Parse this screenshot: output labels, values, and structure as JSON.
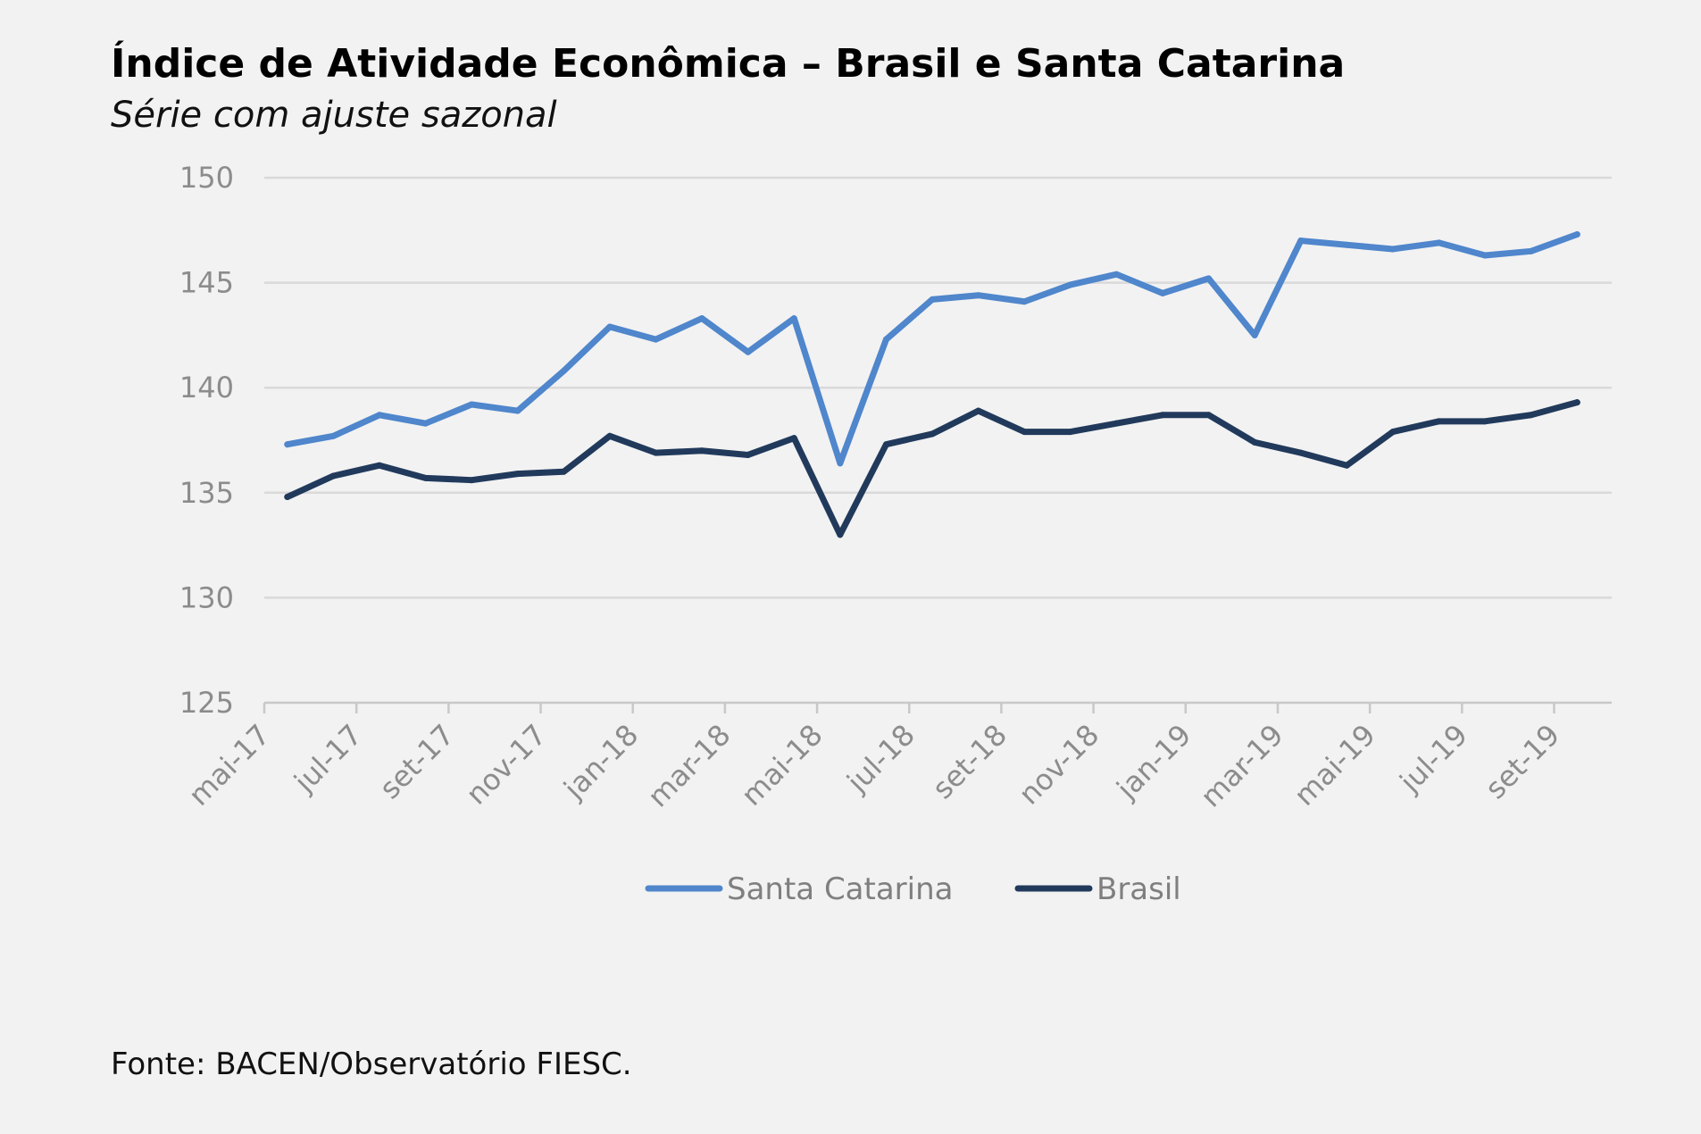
{
  "chart_data": {
    "type": "line",
    "title": "Índice de Atividade Econômica – Brasil e Santa Catarina",
    "subtitle": "Série com ajuste sazonal",
    "source": "Fonte: BACEN/Observatório FIESC.",
    "xlabel": "",
    "ylabel": "",
    "ylim": [
      125,
      150
    ],
    "yticks": [
      "125",
      "130",
      "135",
      "140",
      "145",
      "150"
    ],
    "grid": true,
    "legend_position": "bottom",
    "categories": [
      "mai-17",
      "jun-17",
      "jul-17",
      "ago-17",
      "set-17",
      "out-17",
      "nov-17",
      "dez-17",
      "jan-18",
      "fev-18",
      "mar-18",
      "abr-18",
      "mai-18",
      "jun-18",
      "jul-18",
      "ago-18",
      "set-18",
      "out-18",
      "nov-18",
      "dez-18",
      "jan-19",
      "fev-19",
      "mar-19",
      "abr-19",
      "mai-19",
      "jun-19",
      "jul-19",
      "ago-19",
      "set-19"
    ],
    "xtick_labels": [
      "mai-17",
      "jul-17",
      "set-17",
      "nov-17",
      "jan-18",
      "mar-18",
      "mai-18",
      "jul-18",
      "set-18",
      "nov-18",
      "jan-19",
      "mar-19",
      "mai-19",
      "jul-19",
      "set-19"
    ],
    "series": [
      {
        "name": "Santa Catarina",
        "color": "#4f86cc",
        "values": [
          137.3,
          137.7,
          138.7,
          138.3,
          139.2,
          138.9,
          140.8,
          142.9,
          142.3,
          143.3,
          141.7,
          143.3,
          136.4,
          142.3,
          144.2,
          144.4,
          144.1,
          144.9,
          145.4,
          144.5,
          145.2,
          142.5,
          147.0,
          146.8,
          146.6,
          146.9,
          146.3,
          146.5,
          147.3
        ]
      },
      {
        "name": "Brasil",
        "color": "#213a5c",
        "values": [
          134.8,
          135.8,
          136.3,
          135.7,
          135.6,
          135.9,
          136.0,
          137.7,
          136.9,
          137.0,
          136.8,
          137.6,
          133.0,
          137.3,
          137.8,
          138.9,
          137.9,
          137.9,
          138.3,
          138.7,
          138.7,
          137.4,
          136.9,
          136.3,
          137.9,
          138.4,
          138.4,
          138.7,
          139.3
        ]
      }
    ]
  }
}
